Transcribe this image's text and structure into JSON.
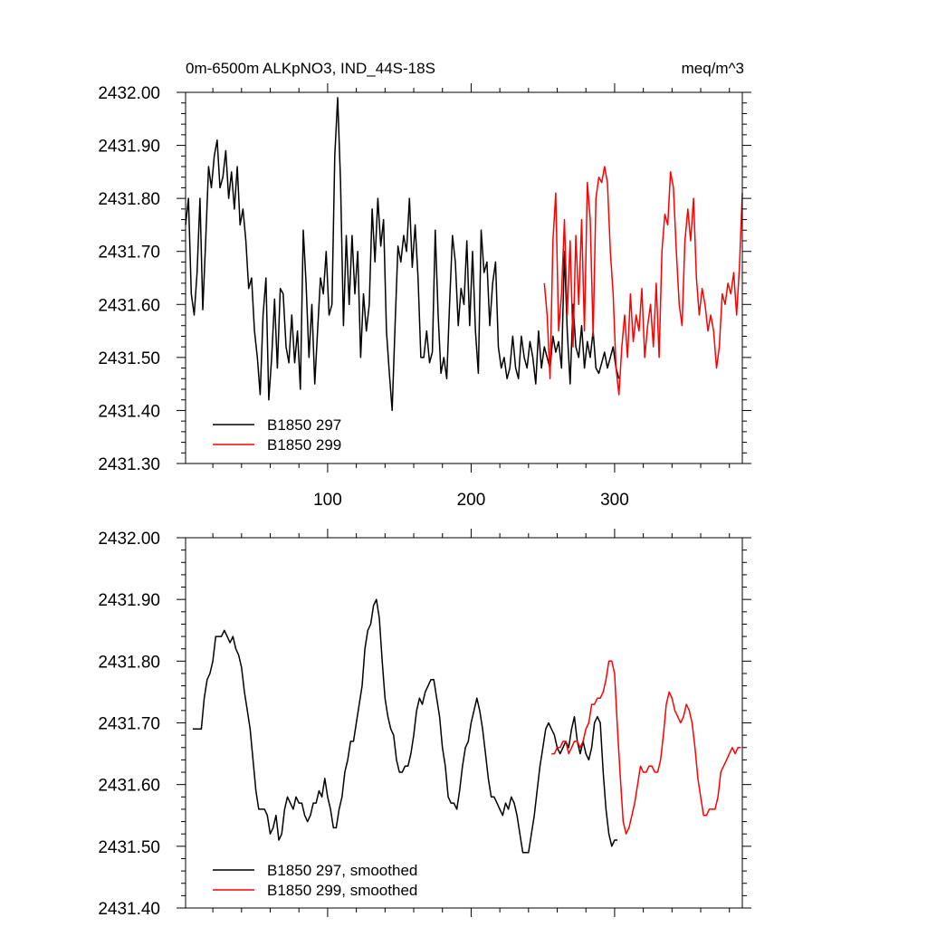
{
  "chart_data": [
    {
      "type": "line",
      "title": "0m-6500m ALKpNO3, IND_44S-18S",
      "units": "meq/m^3",
      "xlabel": "",
      "ylabel": "",
      "xlim": [
        1,
        389
      ],
      "ylim": [
        2431.3,
        2432.0
      ],
      "yticks": [
        2431.3,
        2431.4,
        2431.5,
        2431.6,
        2431.7,
        2431.8,
        2431.9,
        2432.0
      ],
      "ytick_labels": [
        "2431.30",
        "2431.40",
        "2431.50",
        "2431.60",
        "2431.70",
        "2431.80",
        "2431.90",
        "2432.00"
      ],
      "xticks": [
        100,
        200,
        300
      ],
      "xtick_labels": [
        "100",
        "200",
        "300"
      ],
      "grid": false,
      "legend": "bottom-left",
      "series": [
        {
          "name": "B1850 297",
          "color": "#000000",
          "x": [
            1,
            3,
            5,
            7,
            9,
            11,
            13,
            15,
            17,
            19,
            21,
            23,
            25,
            27,
            29,
            31,
            33,
            35,
            37,
            39,
            41,
            43,
            45,
            47,
            49,
            51,
            53,
            55,
            57,
            59,
            61,
            63,
            65,
            67,
            69,
            71,
            73,
            75,
            77,
            79,
            81,
            83,
            85,
            87,
            89,
            91,
            93,
            95,
            97,
            99,
            101,
            103,
            105,
            107,
            109,
            111,
            113,
            115,
            117,
            119,
            121,
            123,
            125,
            127,
            129,
            131,
            133,
            135,
            137,
            139,
            141,
            143,
            145,
            147,
            149,
            151,
            153,
            155,
            157,
            159,
            161,
            163,
            165,
            167,
            169,
            171,
            173,
            175,
            177,
            179,
            181,
            183,
            185,
            187,
            189,
            191,
            193,
            195,
            197,
            199,
            201,
            203,
            205,
            207,
            209,
            211,
            213,
            215,
            217,
            219,
            221,
            223,
            225,
            227,
            229,
            231,
            233,
            235,
            237,
            239,
            241,
            243,
            245,
            247,
            249,
            251,
            253,
            255,
            257,
            259,
            261,
            263,
            265,
            267,
            269,
            271,
            273,
            275,
            277,
            279,
            281,
            283,
            285,
            287,
            289,
            291,
            293,
            295,
            297,
            299,
            301,
            303
          ],
          "values": [
            2431.75,
            2431.8,
            2431.62,
            2431.58,
            2431.66,
            2431.8,
            2431.59,
            2431.72,
            2431.86,
            2431.82,
            2431.88,
            2431.91,
            2431.82,
            2431.84,
            2431.89,
            2431.8,
            2431.85,
            2431.78,
            2431.86,
            2431.75,
            2431.78,
            2431.72,
            2431.63,
            2431.65,
            2431.55,
            2431.5,
            2431.43,
            2431.58,
            2431.65,
            2431.42,
            2431.5,
            2431.61,
            2431.48,
            2431.63,
            2431.62,
            2431.52,
            2431.49,
            2431.58,
            2431.49,
            2431.55,
            2431.44,
            2431.74,
            2431.64,
            2431.5,
            2431.6,
            2431.45,
            2431.55,
            2431.65,
            2431.62,
            2431.7,
            2431.58,
            2431.6,
            2431.88,
            2431.99,
            2431.83,
            2431.56,
            2431.73,
            2431.6,
            2431.73,
            2431.62,
            2431.7,
            2431.5,
            2431.62,
            2431.55,
            2431.6,
            2431.78,
            2431.68,
            2431.8,
            2431.71,
            2431.76,
            2431.55,
            2431.47,
            2431.4,
            2431.56,
            2431.71,
            2431.68,
            2431.73,
            2431.7,
            2431.8,
            2431.67,
            2431.75,
            2431.65,
            2431.5,
            2431.5,
            2431.55,
            2431.49,
            2431.51,
            2431.74,
            2431.58,
            2431.47,
            2431.5,
            2431.46,
            2431.6,
            2431.73,
            2431.68,
            2431.56,
            2431.63,
            2431.6,
            2431.72,
            2431.56,
            2431.7,
            2431.55,
            2431.47,
            2431.74,
            2431.66,
            2431.68,
            2431.56,
            2431.64,
            2431.68,
            2431.52,
            2431.48,
            2431.5,
            2431.46,
            2431.48,
            2431.54,
            2431.48,
            2431.46,
            2431.54,
            2431.5,
            2431.48,
            2431.53,
            2431.5,
            2431.45,
            2431.55,
            2431.48,
            2431.52,
            2431.5,
            2431.48,
            2431.54,
            2431.51,
            2431.53,
            2431.48,
            2431.7,
            2431.55,
            2431.45,
            2431.6,
            2431.52,
            2431.5,
            2431.56,
            2431.48,
            2431.53,
            2431.5,
            2431.55,
            2431.48,
            2431.47,
            2431.49,
            2431.51,
            2431.48,
            2431.5,
            2431.52,
            2431.48,
            2431.46
          ]
        },
        {
          "name": "B1850 299",
          "color": "#ff0000",
          "x": [
            251,
            253,
            255,
            257,
            259,
            261,
            263,
            265,
            267,
            269,
            271,
            273,
            275,
            277,
            279,
            281,
            283,
            285,
            287,
            289,
            291,
            293,
            295,
            297,
            299,
            301,
            303,
            305,
            307,
            309,
            311,
            313,
            315,
            317,
            319,
            321,
            323,
            325,
            327,
            329,
            331,
            333,
            335,
            337,
            339,
            341,
            343,
            345,
            347,
            349,
            351,
            353,
            355,
            357,
            359,
            361,
            363,
            365,
            367,
            369,
            371,
            373,
            375,
            377,
            379,
            381,
            383,
            385,
            387,
            389
          ],
          "values": [
            2431.64,
            2431.58,
            2431.46,
            2431.72,
            2431.81,
            2431.55,
            2431.62,
            2431.76,
            2431.58,
            2431.72,
            2431.52,
            2431.73,
            2431.6,
            2431.76,
            2431.55,
            2431.83,
            2431.76,
            2431.54,
            2431.8,
            2431.84,
            2431.83,
            2431.86,
            2431.83,
            2431.7,
            2431.62,
            2431.48,
            2431.43,
            2431.52,
            2431.58,
            2431.5,
            2431.62,
            2431.53,
            2431.58,
            2431.55,
            2431.63,
            2431.5,
            2431.56,
            2431.6,
            2431.52,
            2431.64,
            2431.5,
            2431.7,
            2431.77,
            2431.75,
            2431.85,
            2431.82,
            2431.7,
            2431.6,
            2431.56,
            2431.72,
            2431.78,
            2431.72,
            2431.8,
            2431.65,
            2431.58,
            2431.63,
            2431.6,
            2431.55,
            2431.58,
            2431.55,
            2431.48,
            2431.52,
            2431.62,
            2431.6,
            2431.64,
            2431.62,
            2431.66,
            2431.58,
            2431.67,
            2431.81
          ]
        }
      ]
    },
    {
      "type": "line",
      "title": "",
      "xlabel": "",
      "ylabel": "",
      "xlim": [
        1,
        389
      ],
      "ylim": [
        2431.4,
        2432.0
      ],
      "yticks": [
        2431.4,
        2431.5,
        2431.6,
        2431.7,
        2431.8,
        2431.9,
        2432.0
      ],
      "ytick_labels": [
        "2431.40",
        "2431.50",
        "2431.60",
        "2431.70",
        "2431.80",
        "2431.90",
        "2432.00"
      ],
      "xticks": [
        100,
        200,
        300
      ],
      "grid": false,
      "legend": "bottom-left",
      "series": [
        {
          "name": "B1850 297, smoothed",
          "color": "#000000",
          "x": [
            6,
            8,
            10,
            12,
            14,
            16,
            18,
            20,
            22,
            24,
            26,
            28,
            30,
            32,
            34,
            36,
            38,
            40,
            42,
            44,
            46,
            48,
            50,
            52,
            54,
            56,
            58,
            60,
            62,
            64,
            66,
            68,
            70,
            72,
            74,
            76,
            78,
            80,
            82,
            84,
            86,
            88,
            90,
            92,
            94,
            96,
            98,
            100,
            102,
            104,
            106,
            108,
            110,
            112,
            114,
            116,
            118,
            120,
            122,
            124,
            126,
            128,
            130,
            132,
            134,
            136,
            138,
            140,
            142,
            144,
            146,
            148,
            150,
            152,
            154,
            156,
            158,
            160,
            162,
            164,
            166,
            168,
            170,
            172,
            174,
            176,
            178,
            180,
            182,
            184,
            186,
            188,
            190,
            192,
            194,
            196,
            198,
            200,
            202,
            204,
            206,
            208,
            210,
            212,
            214,
            216,
            218,
            220,
            222,
            224,
            226,
            228,
            230,
            232,
            234,
            236,
            238,
            240,
            242,
            244,
            246,
            248,
            250,
            252,
            254,
            256,
            258,
            260,
            262,
            264,
            266,
            268,
            270,
            272,
            274,
            276,
            278,
            280,
            282,
            284,
            286,
            288,
            290,
            292,
            294,
            296,
            298,
            300,
            302
          ],
          "values": [
            2431.69,
            2431.69,
            2431.69,
            2431.69,
            2431.74,
            2431.77,
            2431.78,
            2431.8,
            2431.84,
            2431.84,
            2431.84,
            2431.85,
            2431.84,
            2431.83,
            2431.84,
            2431.82,
            2431.81,
            2431.79,
            2431.75,
            2431.72,
            2431.69,
            2431.64,
            2431.59,
            2431.56,
            2431.56,
            2431.56,
            2431.55,
            2431.52,
            2431.53,
            2431.55,
            2431.51,
            2431.52,
            2431.56,
            2431.58,
            2431.57,
            2431.56,
            2431.58,
            2431.57,
            2431.57,
            2431.55,
            2431.54,
            2431.55,
            2431.57,
            2431.57,
            2431.59,
            2431.58,
            2431.61,
            2431.58,
            2431.56,
            2431.53,
            2431.53,
            2431.56,
            2431.58,
            2431.62,
            2431.64,
            2431.67,
            2431.67,
            2431.7,
            2431.73,
            2431.76,
            2431.82,
            2431.85,
            2431.86,
            2431.89,
            2431.9,
            2431.87,
            2431.8,
            2431.74,
            2431.71,
            2431.69,
            2431.68,
            2431.64,
            2431.62,
            2431.62,
            2431.63,
            2431.63,
            2431.65,
            2431.68,
            2431.72,
            2431.74,
            2431.73,
            2431.75,
            2431.76,
            2431.77,
            2431.77,
            2431.74,
            2431.71,
            2431.66,
            2431.63,
            2431.58,
            2431.57,
            2431.57,
            2431.56,
            2431.59,
            2431.63,
            2431.66,
            2431.67,
            2431.7,
            2431.72,
            2431.74,
            2431.72,
            2431.69,
            2431.65,
            2431.61,
            2431.58,
            2431.58,
            2431.57,
            2431.56,
            2431.55,
            2431.57,
            2431.56,
            2431.58,
            2431.57,
            2431.55,
            2431.52,
            2431.49,
            2431.49,
            2431.49,
            2431.52,
            2431.55,
            2431.59,
            2431.63,
            2431.66,
            2431.69,
            2431.7,
            2431.69,
            2431.68,
            2431.66,
            2431.65,
            2431.66,
            2431.67,
            2431.66,
            2431.69,
            2431.71,
            2431.67,
            2431.65,
            2431.67,
            2431.65,
            2431.64,
            2431.66,
            2431.7,
            2431.71,
            2431.7,
            2431.62,
            2431.56,
            2431.52,
            2431.5,
            2431.51,
            2431.51
          ]
        },
        {
          "name": "B1850 299, smoothed",
          "color": "#ff0000",
          "x": [
            256,
            258,
            260,
            262,
            264,
            266,
            268,
            270,
            272,
            274,
            276,
            278,
            280,
            282,
            284,
            286,
            288,
            290,
            292,
            294,
            296,
            298,
            300,
            302,
            304,
            306,
            308,
            310,
            312,
            314,
            316,
            318,
            320,
            322,
            324,
            326,
            328,
            330,
            332,
            334,
            336,
            338,
            340,
            342,
            344,
            346,
            348,
            350,
            352,
            354,
            356,
            358,
            360,
            362,
            364,
            366,
            368,
            370,
            372,
            374,
            376,
            378,
            380,
            382,
            384,
            386,
            388
          ],
          "values": [
            2431.65,
            2431.65,
            2431.66,
            2431.66,
            2431.67,
            2431.67,
            2431.65,
            2431.66,
            2431.67,
            2431.67,
            2431.66,
            2431.67,
            2431.69,
            2431.7,
            2431.73,
            2431.73,
            2431.74,
            2431.74,
            2431.75,
            2431.77,
            2431.8,
            2431.8,
            2431.78,
            2431.69,
            2431.61,
            2431.54,
            2431.52,
            2431.53,
            2431.55,
            2431.57,
            2431.6,
            2431.63,
            2431.62,
            2431.62,
            2431.63,
            2431.63,
            2431.62,
            2431.62,
            2431.64,
            2431.68,
            2431.73,
            2431.75,
            2431.74,
            2431.72,
            2431.71,
            2431.7,
            2431.71,
            2431.73,
            2431.72,
            2431.7,
            2431.66,
            2431.61,
            2431.58,
            2431.55,
            2431.55,
            2431.56,
            2431.56,
            2431.56,
            2431.58,
            2431.62,
            2431.63,
            2431.64,
            2431.65,
            2431.66,
            2431.65,
            2431.66,
            2431.66
          ]
        }
      ]
    }
  ]
}
